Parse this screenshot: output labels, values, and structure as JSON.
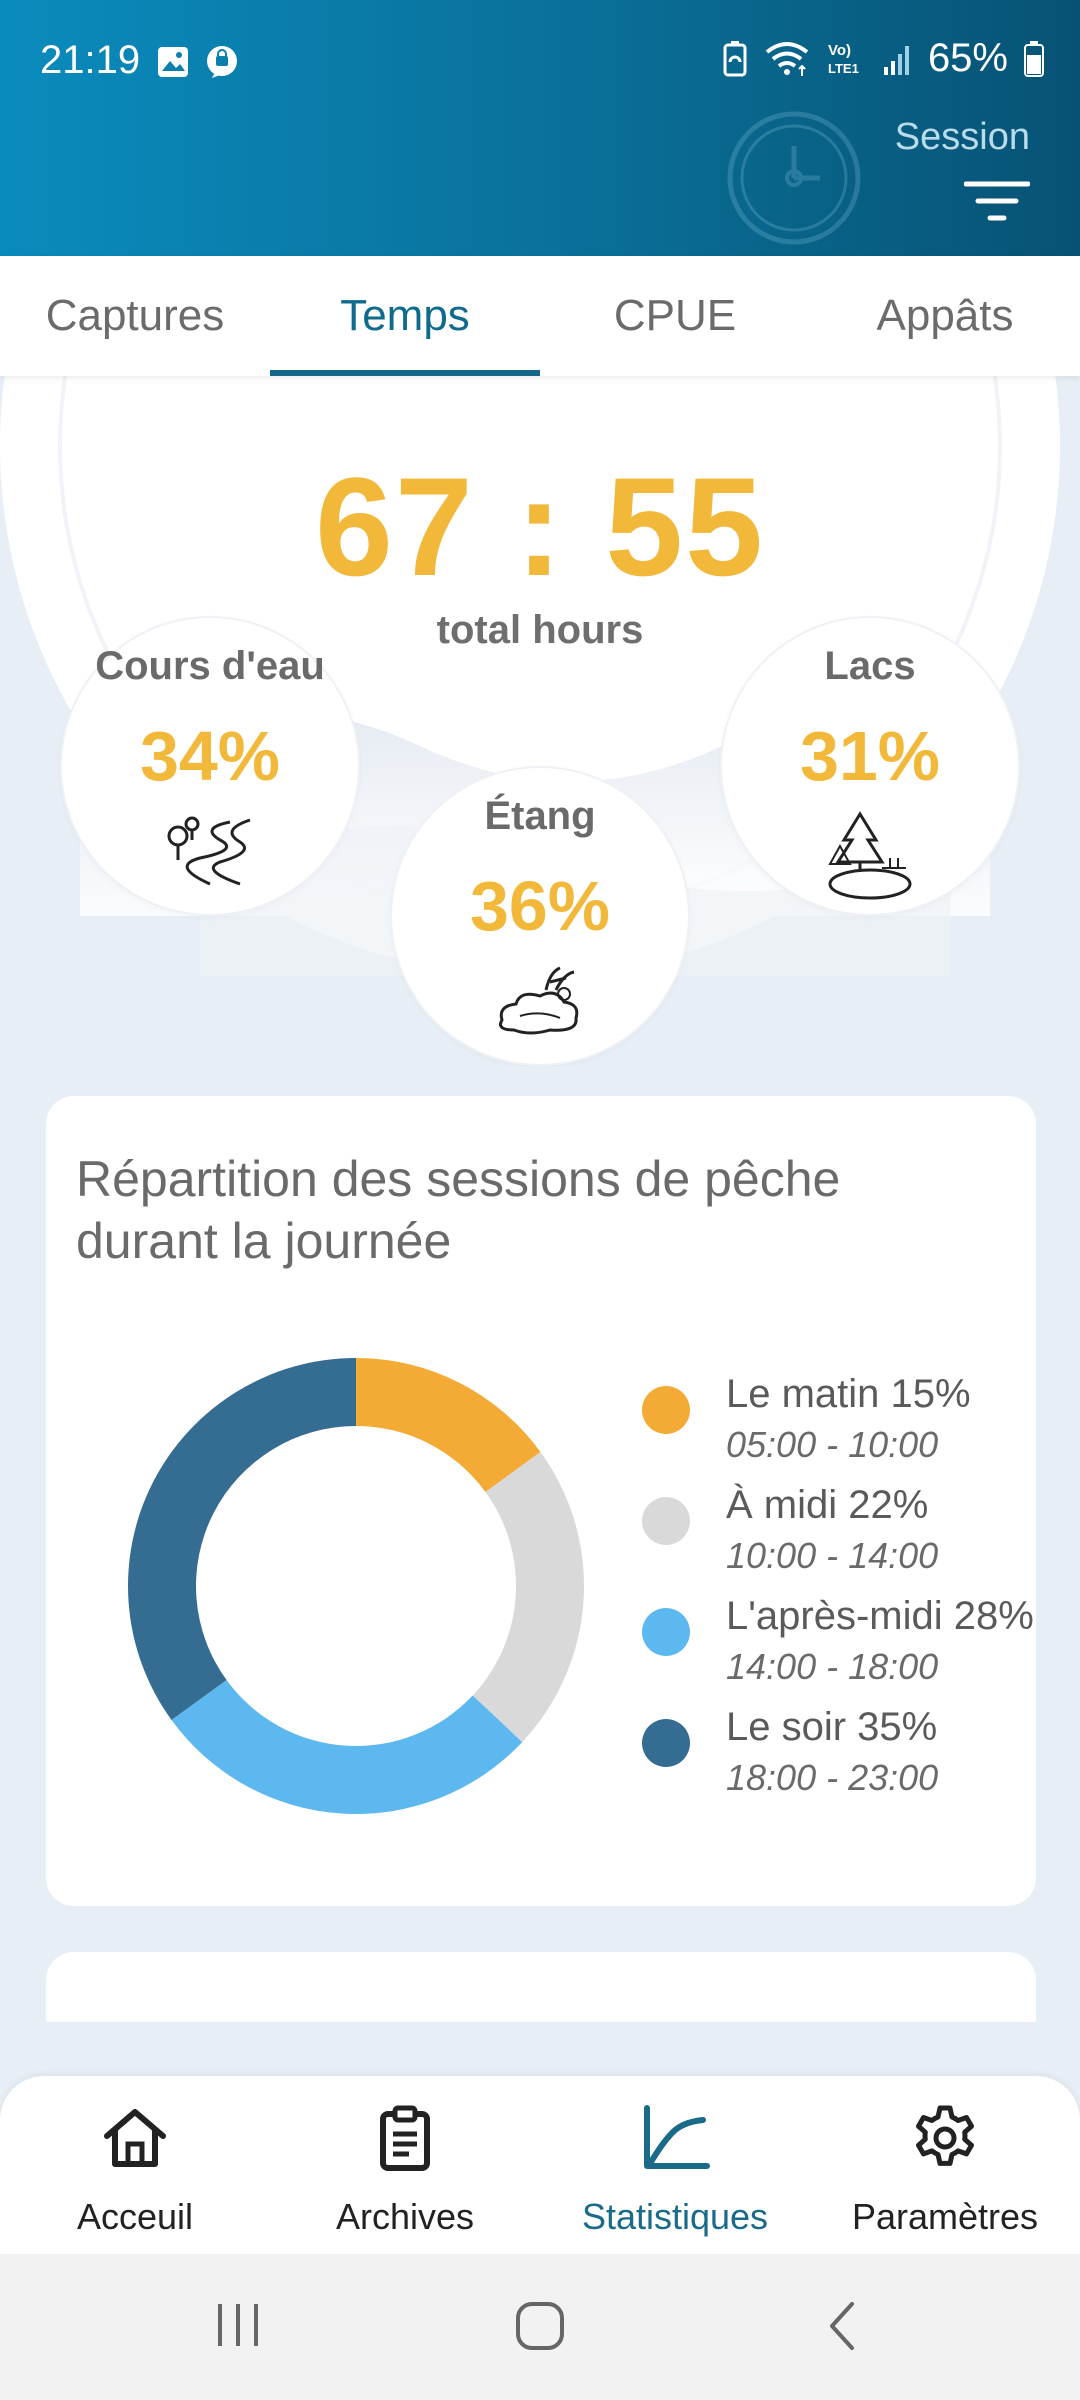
{
  "status_bar": {
    "time": "21:19",
    "battery": "65%",
    "icons": [
      "gallery-icon",
      "chat-icon",
      "battery-saver-icon",
      "wifi-icon",
      "volte-icon",
      "signal-icon",
      "battery-icon"
    ]
  },
  "header": {
    "session_label": "Session"
  },
  "tabs": [
    {
      "label": "Captures",
      "active": false
    },
    {
      "label": "Temps",
      "active": true
    },
    {
      "label": "CPUE",
      "active": false
    },
    {
      "label": "Appâts",
      "active": false
    }
  ],
  "summary": {
    "total_time": "67 : 55",
    "total_label": "total hours",
    "locations": [
      {
        "name": "Cours d'eau",
        "percent": "34%",
        "icon": "river-icon"
      },
      {
        "name": "Étang",
        "percent": "36%",
        "icon": "pond-icon"
      },
      {
        "name": "Lacs",
        "percent": "31%",
        "icon": "lake-icon"
      }
    ]
  },
  "distribution_card": {
    "title": "Répartition des sessions de pêche durant la journée",
    "legend": [
      {
        "label": "Le matin 15%",
        "time": "05:00 - 10:00",
        "color": "#f4ab35"
      },
      {
        "label": "À midi 22%",
        "time": "10:00 - 14:00",
        "color": "#d9d9d9"
      },
      {
        "label": "L'après-midi 28%",
        "time": "14:00 - 18:00",
        "color": "#5db8ef"
      },
      {
        "label": "Le soir 35%",
        "time": "18:00 - 23:00",
        "color": "#356c92"
      }
    ]
  },
  "chart_data": {
    "type": "pie",
    "categories": [
      "Le matin",
      "À midi",
      "L'après-midi",
      "Le soir"
    ],
    "values": [
      15,
      22,
      28,
      35
    ],
    "colors": [
      "#f4ab35",
      "#d9d9d9",
      "#5db8ef",
      "#356c92"
    ],
    "donut": true
  },
  "bottom_nav": [
    {
      "label": "Acceuil",
      "icon": "home-icon",
      "active": false
    },
    {
      "label": "Archives",
      "icon": "clipboard-icon",
      "active": false
    },
    {
      "label": "Statistiques",
      "icon": "chart-icon",
      "active": true
    },
    {
      "label": "Paramètres",
      "icon": "gear-icon",
      "active": false
    }
  ],
  "system_nav": [
    "recent-apps-icon",
    "home-button-icon",
    "back-icon"
  ]
}
